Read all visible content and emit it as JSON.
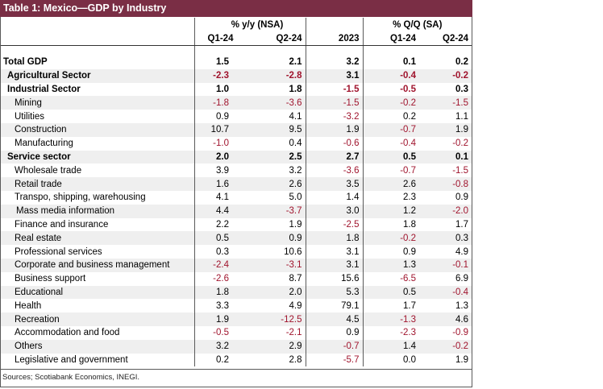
{
  "title": "Table 1: Mexico—GDP by Industry",
  "headers": {
    "group_yy": "% y/y (NSA)",
    "group_qq": "% Q/Q (SA)",
    "columns": [
      "Q1-24",
      "Q2-24",
      "2023",
      "Q1-24",
      "Q2-24"
    ]
  },
  "rows": [
    {
      "label": "Total GDP",
      "values": [
        "1.5",
        "2.1",
        "3.2",
        "0.1",
        "0.2"
      ]
    },
    {
      "label": "Agricultural Sector",
      "values": [
        "-2.3",
        "-2.8",
        "3.1",
        "-0.4",
        "-0.2"
      ]
    },
    {
      "label": "Industrial Sector",
      "values": [
        "1.0",
        "1.8",
        "-1.5",
        "-0.5",
        "0.3"
      ]
    },
    {
      "label": "Mining",
      "values": [
        "-1.8",
        "-3.6",
        "-1.5",
        "-0.2",
        "-1.5"
      ]
    },
    {
      "label": "Utilities",
      "values": [
        "0.9",
        "4.1",
        "-3.2",
        "0.2",
        "1.1"
      ]
    },
    {
      "label": "Construction",
      "values": [
        "10.7",
        "9.5",
        "1.9",
        "-0.7",
        "1.9"
      ]
    },
    {
      "label": "Manufacturing",
      "values": [
        "-1.0",
        "0.4",
        "-0.6",
        "-0.4",
        "-0.2"
      ]
    },
    {
      "label": "Service sector",
      "values": [
        "2.0",
        "2.5",
        "2.7",
        "0.5",
        "0.1"
      ]
    },
    {
      "label": "Wholesale trade",
      "values": [
        "3.9",
        "3.2",
        "-3.6",
        "-0.7",
        "-1.5"
      ]
    },
    {
      "label": "Retail trade",
      "values": [
        "1.6",
        "2.6",
        "3.5",
        "2.6",
        "-0.8"
      ]
    },
    {
      "label": "Transpo, shipping, warehousing",
      "values": [
        "4.1",
        "5.0",
        "1.4",
        "2.3",
        "0.9"
      ]
    },
    {
      "label": "Mass media information",
      "values": [
        "4.4",
        "-3.7",
        "3.0",
        "1.2",
        "-2.0"
      ]
    },
    {
      "label": "Finance and insurance",
      "values": [
        "2.2",
        "1.9",
        "-2.5",
        "1.8",
        "1.7"
      ]
    },
    {
      "label": "Real estate",
      "values": [
        "0.5",
        "0.9",
        "1.8",
        "-0.2",
        "0.3"
      ]
    },
    {
      "label": "Professional services",
      "values": [
        "0.3",
        "10.6",
        "3.1",
        "0.9",
        "4.9"
      ]
    },
    {
      "label": "Corporate and business management",
      "values": [
        "-2.4",
        "-3.1",
        "3.1",
        "1.3",
        "-0.1"
      ]
    },
    {
      "label": "Business support",
      "values": [
        "-2.6",
        "8.7",
        "15.6",
        "-6.5",
        "6.9"
      ]
    },
    {
      "label": "Educational",
      "values": [
        "1.8",
        "2.0",
        "5.3",
        "0.5",
        "-0.4"
      ]
    },
    {
      "label": "Health",
      "values": [
        "3.3",
        "4.9",
        "79.1",
        "1.7",
        "1.3"
      ]
    },
    {
      "label": "Recreation",
      "values": [
        "1.9",
        "-12.5",
        "4.5",
        "-1.3",
        "4.6"
      ]
    },
    {
      "label": "Accommodation and food",
      "values": [
        "-0.5",
        "-2.1",
        "0.9",
        "-2.3",
        "-0.9"
      ]
    },
    {
      "label": "Others",
      "values": [
        "3.2",
        "2.9",
        "-0.7",
        "1.4",
        "-0.2"
      ]
    },
    {
      "label": "Legislative and government",
      "values": [
        "0.2",
        "2.8",
        "-5.7",
        "0.0",
        "1.9"
      ]
    }
  ],
  "source": "Sources; Scotiabank Economics, INEGI.",
  "colors": {
    "title_background": "#7a2e45",
    "negative_value": "#a0142d",
    "shaded_row": "#efefef"
  }
}
